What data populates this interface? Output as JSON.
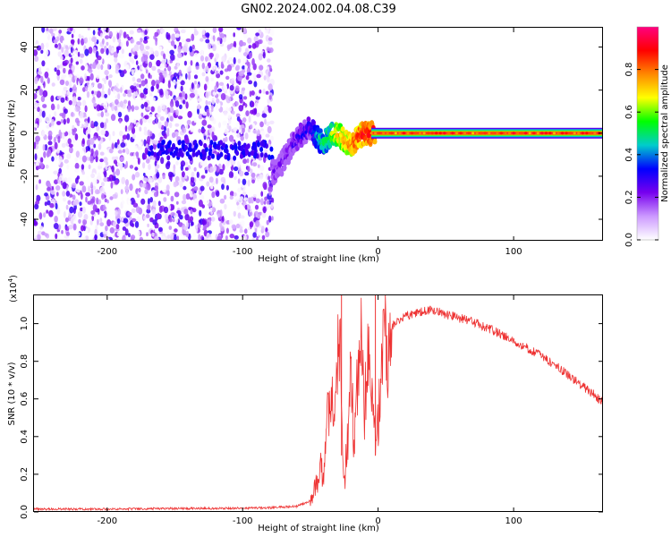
{
  "page_title": "GN02.2024.002.04.08.C39",
  "chart_data": [
    {
      "type": "heatmap",
      "xlabel": "Height of straight line (km)",
      "ylabel": "Frequency (Hz)",
      "xlim": [
        -254,
        166
      ],
      "ylim": [
        -50,
        49
      ],
      "x_ticks": [
        -200,
        -100,
        0,
        100
      ],
      "x_tick_labels": [
        "-200",
        "-100",
        "0",
        "100"
      ],
      "y_ticks": [
        -40,
        -20,
        0,
        20,
        40
      ],
      "y_tick_labels": [
        "-40",
        "-20",
        "0",
        "20",
        "40"
      ],
      "grid": false,
      "colorbar": {
        "label": "Normalized spectral amplitude",
        "range": [
          0,
          1
        ],
        "ticks": [
          0,
          0.2,
          0.4,
          0.6,
          0.8
        ],
        "tick_labels": [
          "0.0",
          "0.2",
          "0.4",
          "0.6",
          "0.8"
        ],
        "colormap": [
          "#ffffff",
          "#cc99ff",
          "#7700ee",
          "#0000ff",
          "#00cccc",
          "#00ff00",
          "#ffff00",
          "#ff8800",
          "#ff0000",
          "#ff0080"
        ]
      },
      "noise_region": {
        "x_range": [
          -254,
          -78
        ],
        "amplitude_range": [
          0.0,
          0.3
        ]
      },
      "signal_ridge": {
        "x": [
          -75,
          -70,
          -65,
          -60,
          -55,
          -50,
          -45,
          -40,
          -35,
          -30,
          -25,
          -20,
          -15,
          -10,
          -5,
          0,
          10,
          50,
          100,
          166
        ],
        "y": [
          -18,
          -13,
          -7,
          -3,
          0,
          3,
          -2,
          -5,
          -1,
          0,
          -3,
          -6,
          -2,
          0,
          0,
          0,
          0,
          0,
          0,
          0
        ],
        "amplitude": [
          0.2,
          0.2,
          0.25,
          0.25,
          0.3,
          0.3,
          0.45,
          0.5,
          0.6,
          0.7,
          0.75,
          0.8,
          0.85,
          0.88,
          0.9,
          0.92,
          0.95,
          0.95,
          0.95,
          0.95
        ]
      }
    },
    {
      "type": "line",
      "xlabel": "Height of straight line (km)",
      "ylabel": "SNR (10 * v/v)",
      "y_exponent_label": "(x10",
      "y_exponent_power": "4",
      "y_exponent_close": ")",
      "xlim": [
        -254,
        166
      ],
      "ylim": [
        0,
        1.15
      ],
      "x_ticks": [
        -200,
        -100,
        0,
        100
      ],
      "x_tick_labels": [
        "-200",
        "-100",
        "0",
        "100"
      ],
      "y_ticks": [
        0,
        0.2,
        0.4,
        0.6,
        0.8,
        1.0
      ],
      "y_tick_labels": [
        "0.0",
        "0.2",
        "0.4",
        "0.6",
        "0.8",
        "1.0"
      ],
      "grid": false,
      "series": [
        {
          "color": "#ee3333",
          "x": [
            -254,
            -200,
            -150,
            -100,
            -80,
            -60,
            -50,
            -45,
            -42,
            -40,
            -38,
            -35,
            -32,
            -30,
            -28,
            -25,
            -22,
            -20,
            -18,
            -15,
            -12,
            -10,
            -8,
            -5,
            -3,
            0,
            2,
            5,
            8,
            10,
            15,
            20,
            30,
            40,
            50,
            60,
            70,
            80,
            100,
            120,
            140,
            160,
            166
          ],
          "y": [
            0.015,
            0.015,
            0.018,
            0.02,
            0.022,
            0.03,
            0.06,
            0.15,
            0.25,
            0.18,
            0.45,
            0.7,
            0.4,
            0.9,
            0.8,
            0.15,
            0.4,
            0.85,
            0.3,
            0.7,
            0.9,
            0.5,
            0.85,
            0.6,
            0.4,
            0.45,
            0.75,
            0.95,
            0.85,
            0.98,
            1.02,
            1.04,
            1.06,
            1.07,
            1.05,
            1.03,
            1.01,
            0.98,
            0.91,
            0.83,
            0.73,
            0.62,
            0.58
          ],
          "spikes": [
            {
              "x": -27,
              "y": 1.15
            },
            {
              "x": -2,
              "y": 1.15
            }
          ]
        }
      ]
    }
  ]
}
